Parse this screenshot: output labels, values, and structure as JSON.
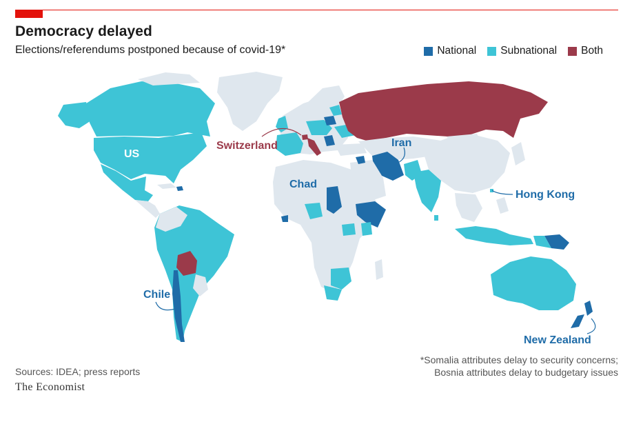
{
  "title": "Democracy delayed",
  "subtitle": "Elections/referendums postponed because of covid-19*",
  "legend": [
    {
      "label": "National",
      "color": "#1f6ca8"
    },
    {
      "label": "Subnational",
      "color": "#3ec4d6"
    },
    {
      "label": "Both",
      "color": "#9b3a4a"
    }
  ],
  "colors": {
    "none": "#dfe7ee",
    "national": "#1f6ca8",
    "subnational": "#3ec4d6",
    "both": "#9b3a4a",
    "accent": "#e3120b"
  },
  "labels": {
    "us": "US",
    "switzerland": "Switzerland",
    "iran": "Iran",
    "chad": "Chad",
    "hong_kong": "Hong Kong",
    "chile": "Chile",
    "new_zealand": "New Zealand"
  },
  "sources": "Sources: IDEA; press reports",
  "brand": "The Economist",
  "footnote": {
    "line1": "*Somalia attributes delay to security concerns;",
    "line2": "Bosnia attributes delay to budgetary issues"
  }
}
